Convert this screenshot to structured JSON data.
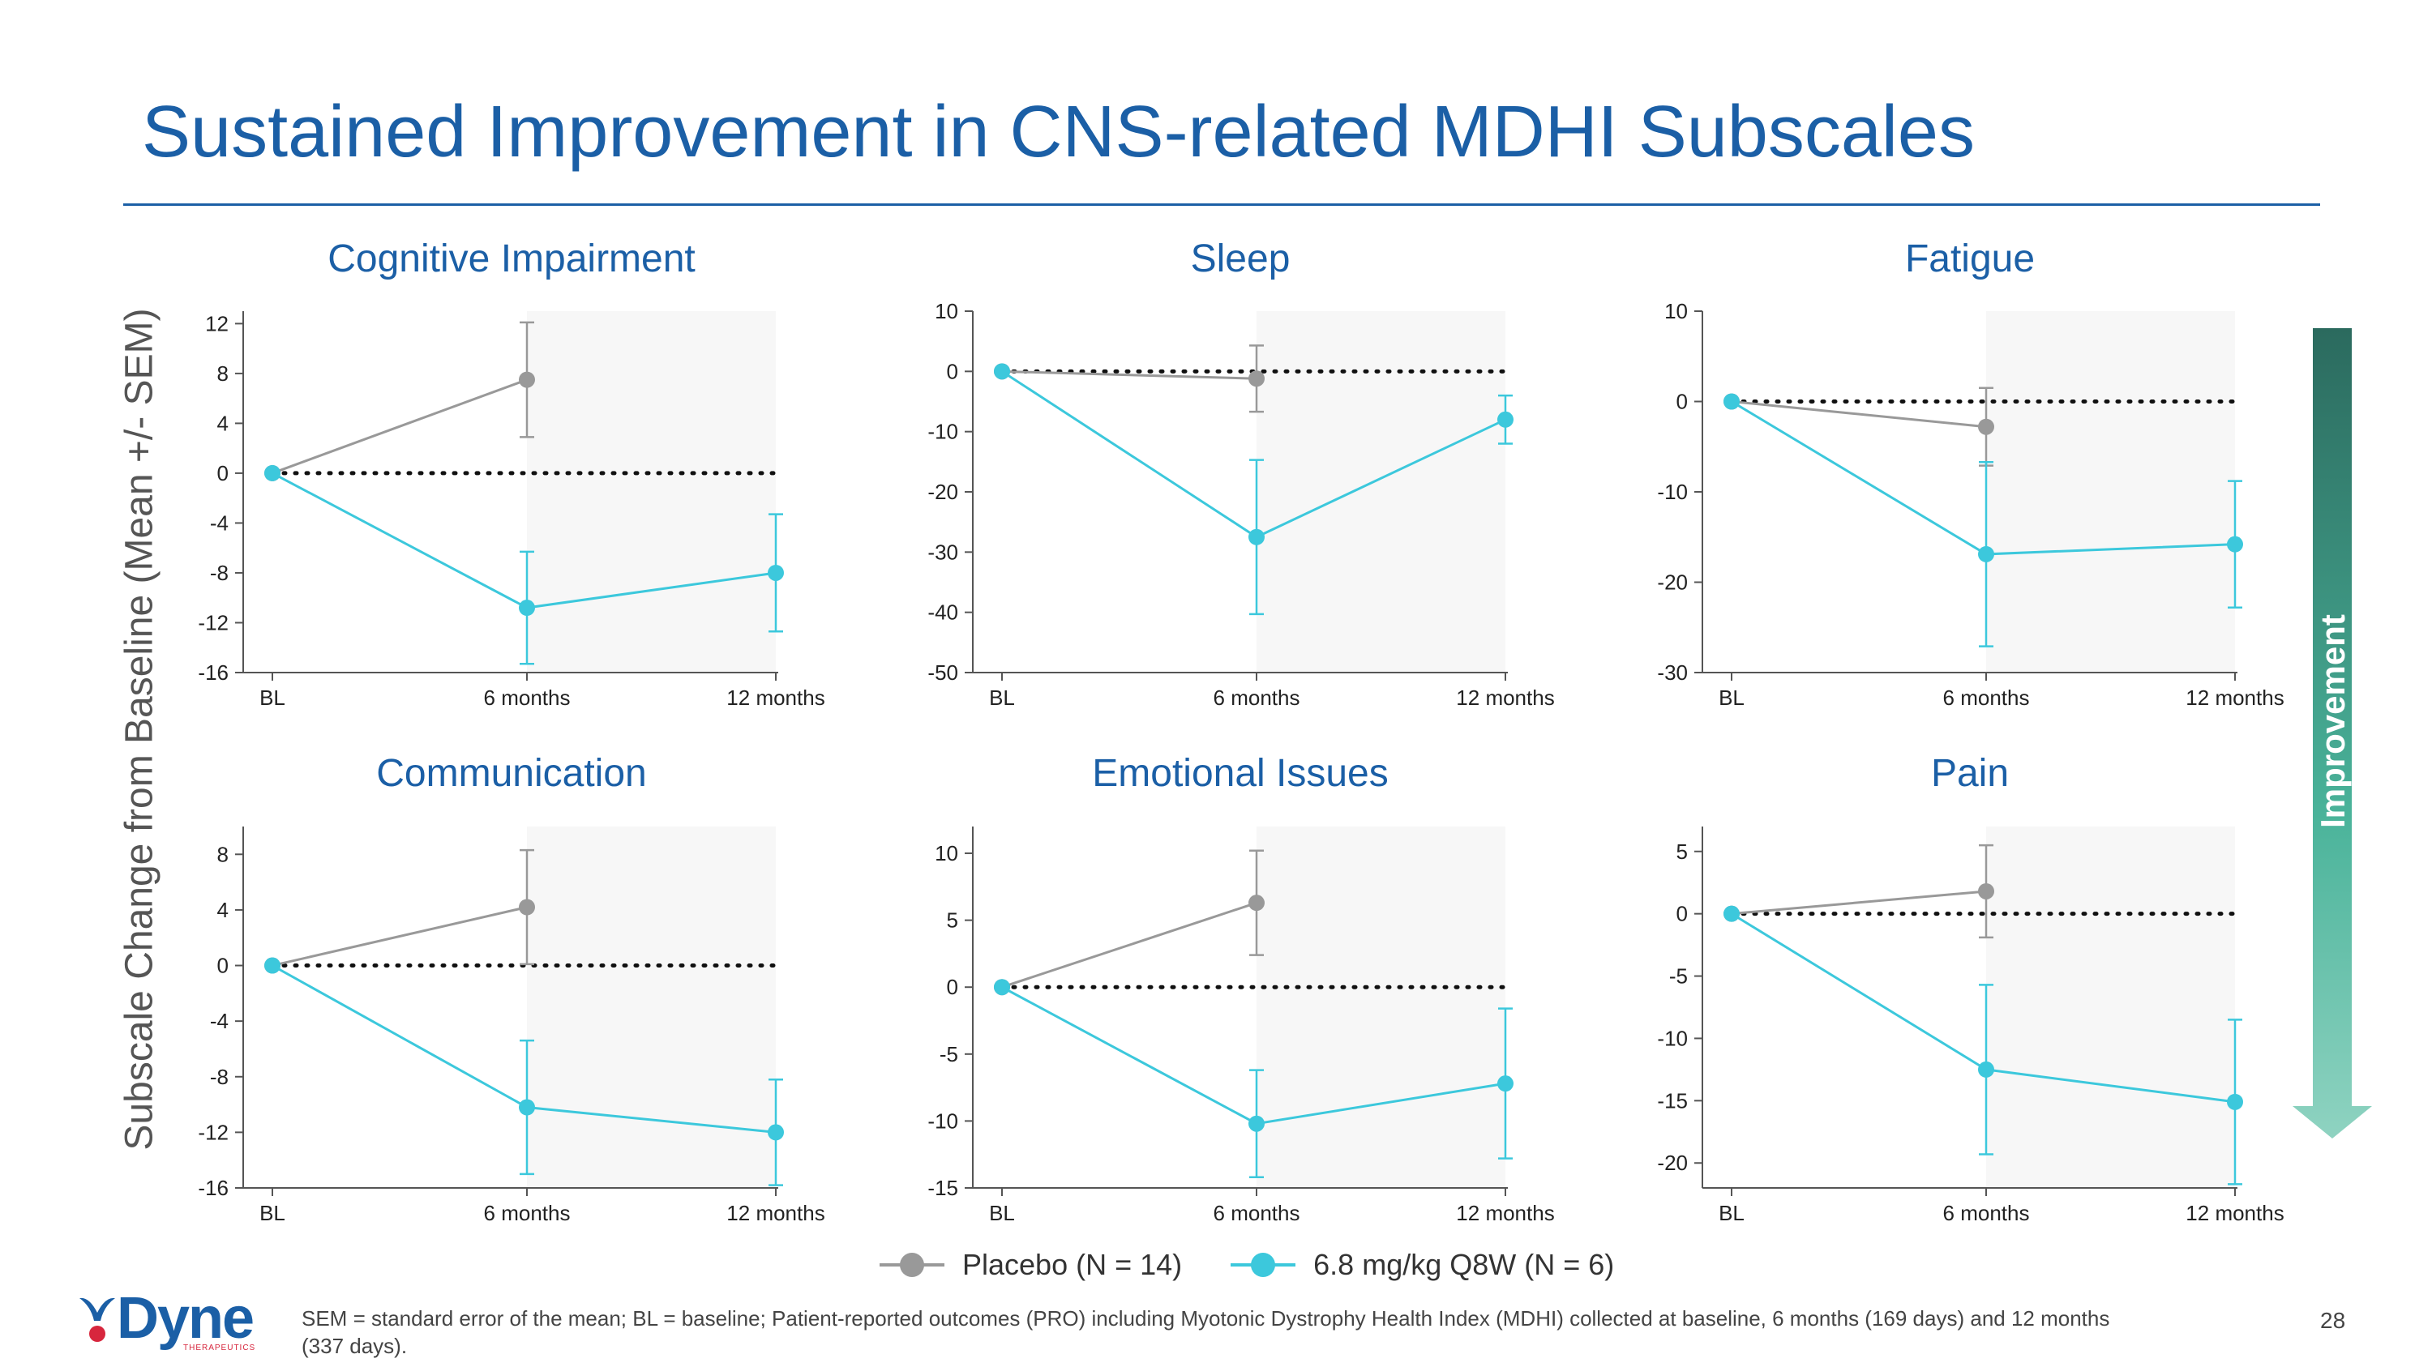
{
  "title": "Sustained Improvement in CNS-related MDHI Subscales",
  "y_axis_label": "Subscale Change from Baseline (Mean +/- SEM)",
  "improvement_label": "Improvement",
  "legend": [
    {
      "label": "Placebo (N = 14)",
      "color": "#999999"
    },
    {
      "label": "6.8 mg/kg Q8W (N = 6)",
      "color": "#3cc8dc"
    }
  ],
  "footnote": "SEM = standard error of the mean; BL = baseline; Patient-reported outcomes (PRO) including Myotonic Dystrophy Health Index (MDHI) collected at baseline, 6 months (169 days) and 12 months (337 days).",
  "page_number": "28",
  "logo": {
    "text": "Dyne",
    "subtext": "THERAPEUTICS"
  },
  "colors": {
    "accent": "#1b5fa6",
    "placebo": "#999999",
    "treatment": "#3cc8dc",
    "shade": "#f7f7f7"
  },
  "chart_data": [
    {
      "type": "line",
      "title": "Cognitive Impairment",
      "categories": [
        "BL",
        "6 months",
        "12 months"
      ],
      "yticks": [
        -16,
        -12,
        -8,
        -4,
        0,
        4,
        8,
        12
      ],
      "ylim": [
        -16,
        13
      ],
      "series": [
        {
          "name": "Placebo (N = 14)",
          "values": [
            0,
            7.5,
            null
          ],
          "err": [
            0,
            4.6,
            null
          ]
        },
        {
          "name": "6.8 mg/kg Q8W (N = 6)",
          "values": [
            0,
            -10.8,
            -8.0
          ],
          "err": [
            0,
            4.5,
            4.7
          ]
        }
      ]
    },
    {
      "type": "line",
      "title": "Sleep",
      "categories": [
        "BL",
        "6 months",
        "12 months"
      ],
      "yticks": [
        -50,
        -40,
        -30,
        -20,
        -10,
        0,
        10
      ],
      "ylim": [
        -50,
        10
      ],
      "series": [
        {
          "name": "Placebo (N = 14)",
          "values": [
            0,
            -1.2,
            null
          ],
          "err": [
            0,
            5.5,
            null
          ]
        },
        {
          "name": "6.8 mg/kg Q8W (N = 6)",
          "values": [
            0,
            -27.5,
            -8.0
          ],
          "err": [
            0,
            12.8,
            4.0
          ]
        }
      ]
    },
    {
      "type": "line",
      "title": "Fatigue",
      "categories": [
        "BL",
        "6 months",
        "12 months"
      ],
      "yticks": [
        -30,
        -20,
        -10,
        0,
        10
      ],
      "ylim": [
        -30,
        10
      ],
      "series": [
        {
          "name": "Placebo (N = 14)",
          "values": [
            0,
            -2.8,
            null
          ],
          "err": [
            0,
            4.3,
            null
          ]
        },
        {
          "name": "6.8 mg/kg Q8W (N = 6)",
          "values": [
            0,
            -16.9,
            -15.8
          ],
          "err": [
            0,
            10.2,
            7.0
          ]
        }
      ]
    },
    {
      "type": "line",
      "title": "Communication",
      "categories": [
        "BL",
        "6 months",
        "12 months"
      ],
      "yticks": [
        -16,
        -12,
        -8,
        -4,
        0,
        4,
        8
      ],
      "ylim": [
        -16,
        10
      ],
      "series": [
        {
          "name": "Placebo (N = 14)",
          "values": [
            0,
            4.2,
            null
          ],
          "err": [
            0,
            4.1,
            null
          ]
        },
        {
          "name": "6.8 mg/kg Q8W (N = 6)",
          "values": [
            0,
            -10.2,
            -12.0
          ],
          "err": [
            0,
            4.8,
            3.8
          ]
        }
      ]
    },
    {
      "type": "line",
      "title": "Emotional Issues",
      "categories": [
        "BL",
        "6 months",
        "12 months"
      ],
      "yticks": [
        -15,
        -10,
        -5,
        0,
        5,
        10
      ],
      "ylim": [
        -15,
        12
      ],
      "series": [
        {
          "name": "Placebo (N = 14)",
          "values": [
            0,
            6.3,
            null
          ],
          "err": [
            0,
            3.9,
            null
          ]
        },
        {
          "name": "6.8 mg/kg Q8W (N = 6)",
          "values": [
            0,
            -10.2,
            -7.2
          ],
          "err": [
            0,
            4.0,
            5.6
          ]
        }
      ]
    },
    {
      "type": "line",
      "title": "Pain",
      "categories": [
        "BL",
        "6 months",
        "12 months"
      ],
      "yticks": [
        -20,
        -15,
        -10,
        -5,
        0,
        5
      ],
      "ylim": [
        -22,
        7
      ],
      "series": [
        {
          "name": "Placebo (N = 14)",
          "values": [
            0,
            1.8,
            null
          ],
          "err": [
            0,
            3.7,
            null
          ]
        },
        {
          "name": "6.8 mg/kg Q8W (N = 6)",
          "values": [
            0,
            -12.5,
            -15.1
          ],
          "err": [
            0,
            6.8,
            6.6
          ]
        }
      ]
    }
  ]
}
